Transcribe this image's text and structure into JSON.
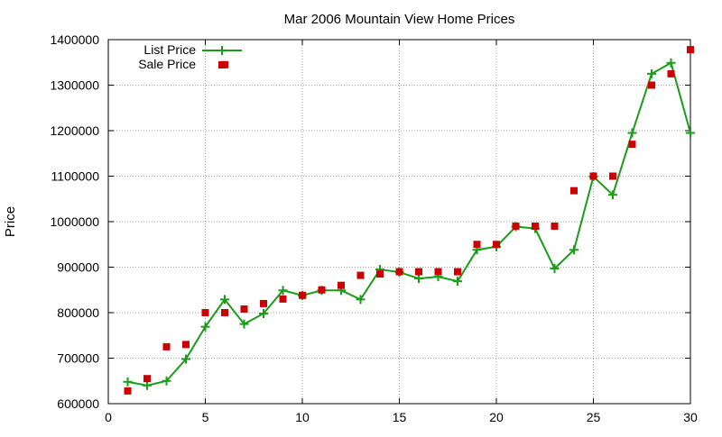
{
  "chart_data": {
    "type": "line",
    "title": "Mar 2006 Mountain View Home Prices",
    "xlabel": "",
    "ylabel": "Price",
    "xlim": [
      0,
      30
    ],
    "ylim": [
      600000,
      1400000
    ],
    "xticks": [
      0,
      5,
      10,
      15,
      20,
      25,
      30
    ],
    "yticks": [
      600000,
      700000,
      800000,
      900000,
      1000000,
      1100000,
      1200000,
      1300000,
      1400000
    ],
    "grid": true,
    "legend_position": "top-left",
    "series": [
      {
        "name": "List Price",
        "style": "line-with-plus-markers",
        "color": "#1a9c1a",
        "x": [
          1,
          2,
          3,
          4,
          5,
          6,
          7,
          8,
          9,
          10,
          11,
          12,
          13,
          14,
          15,
          16,
          17,
          18,
          19,
          20,
          21,
          22,
          23,
          24,
          25,
          26,
          27,
          28,
          29,
          30
        ],
        "values": [
          648000,
          640000,
          650000,
          698000,
          769000,
          829000,
          775000,
          798000,
          849000,
          838000,
          849000,
          849000,
          829000,
          895000,
          889000,
          875000,
          879000,
          869000,
          938000,
          945000,
          989000,
          985000,
          897000,
          938000,
          1099000,
          1059000,
          1195000,
          1325000,
          1349000,
          1195000
        ]
      },
      {
        "name": "Sale Price",
        "style": "square-markers",
        "color": "#cc0000",
        "x": [
          1,
          2,
          3,
          4,
          5,
          6,
          6,
          7,
          8,
          9,
          10,
          11,
          12,
          13,
          14,
          15,
          16,
          17,
          18,
          19,
          20,
          21,
          22,
          23,
          24,
          25,
          26,
          27,
          28,
          29,
          30
        ],
        "values": [
          628000,
          655000,
          725000,
          730000,
          800000,
          1345000,
          800000,
          808000,
          820000,
          830000,
          838000,
          850000,
          860000,
          882000,
          885000,
          890000,
          890000,
          890000,
          890000,
          950000,
          950000,
          990000,
          990000,
          990000,
          1068000,
          1100000,
          1100000,
          1170000,
          1300000,
          1325000,
          1378000
        ]
      }
    ]
  }
}
